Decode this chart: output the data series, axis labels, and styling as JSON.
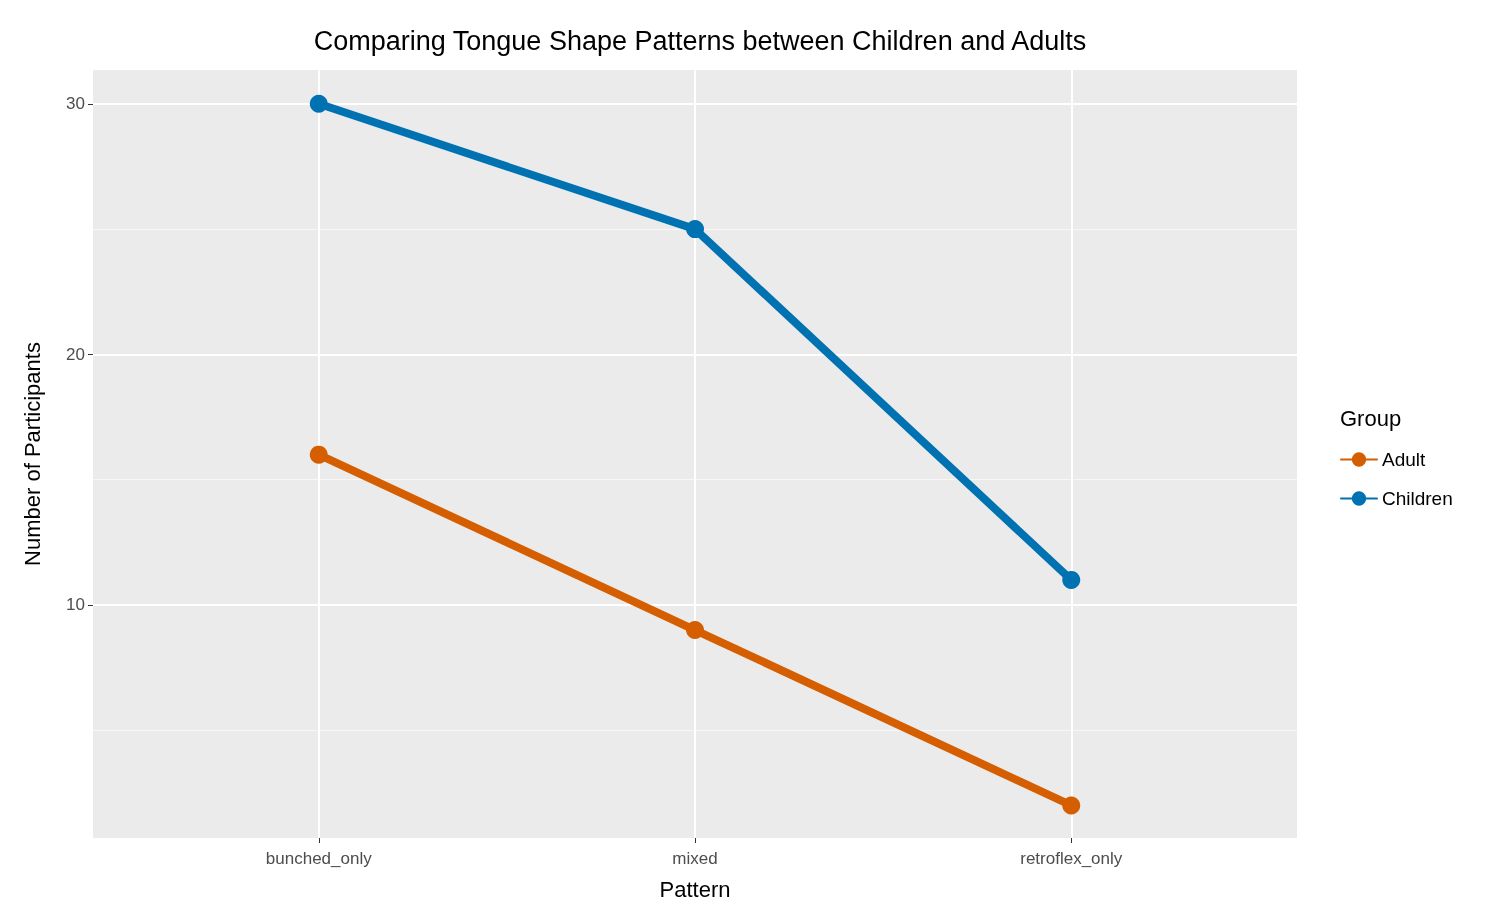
{
  "chart_data": {
    "type": "line",
    "title": "Comparing Tongue Shape Patterns between Children and Adults",
    "xlabel": "Pattern",
    "ylabel": "Number of Participants",
    "legend_title": "Group",
    "categories": [
      "bunched_only",
      "mixed",
      "retroflex_only"
    ],
    "series": [
      {
        "name": "Adult",
        "color": "#d55e00",
        "values": [
          16,
          9,
          2
        ]
      },
      {
        "name": "Children",
        "color": "#0072b2",
        "values": [
          30,
          25,
          11
        ]
      }
    ],
    "ylim": [
      0.7,
      31.35
    ],
    "yticks": [
      {
        "value": 5,
        "label": null
      },
      10,
      {
        "value": 15,
        "label": null
      },
      20,
      {
        "value": 25,
        "label": null
      },
      30
    ],
    "grid": true,
    "legend": "right",
    "marker": "circle",
    "line_style": "solid"
  }
}
